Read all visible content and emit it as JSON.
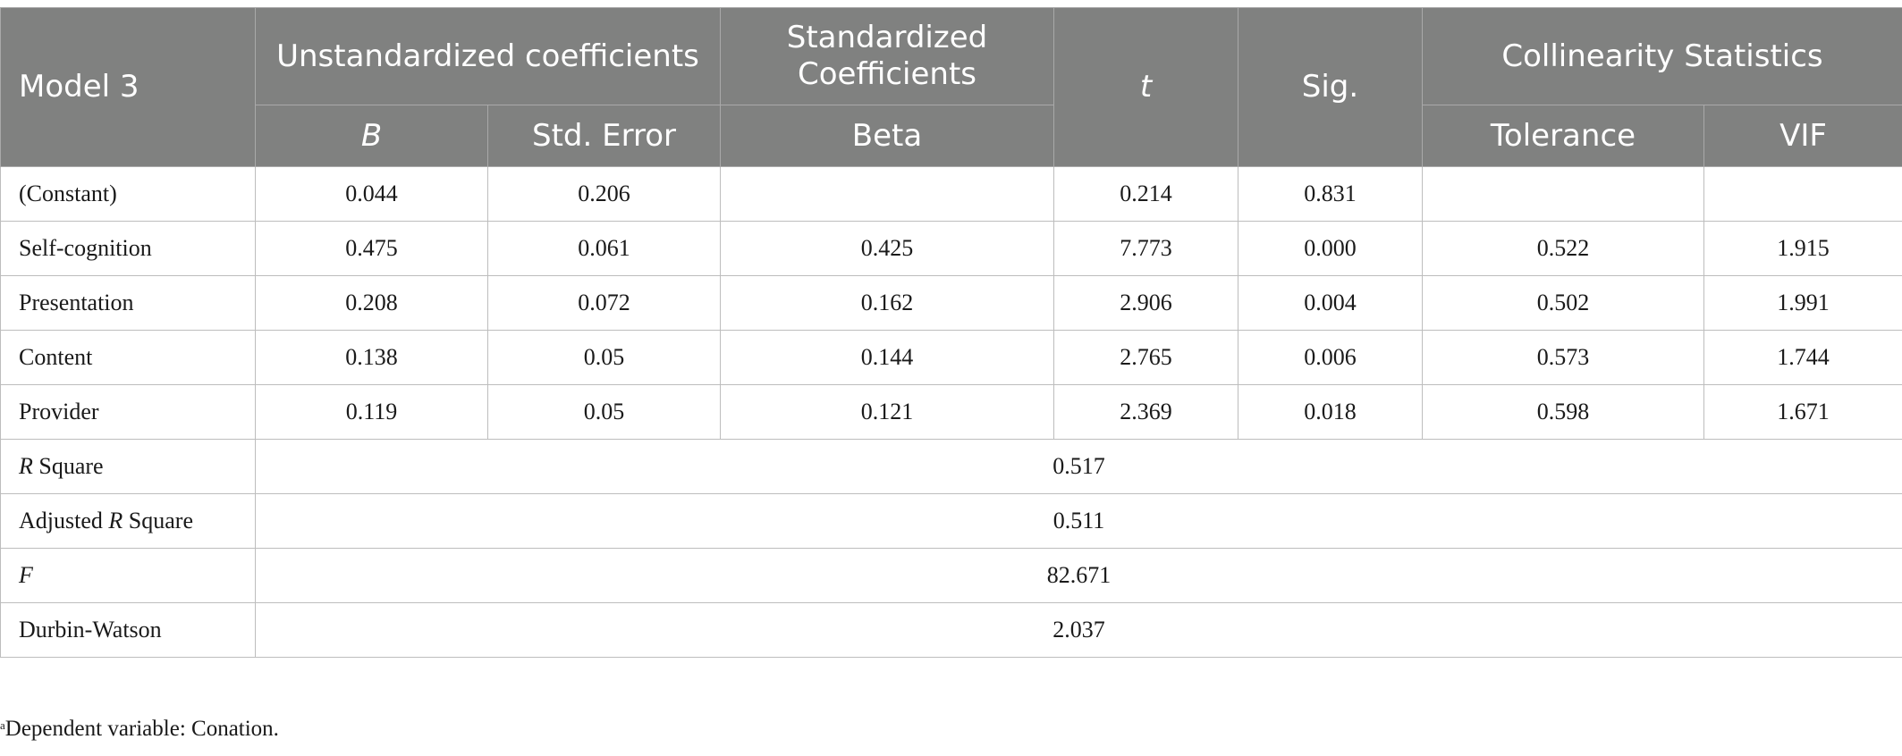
{
  "header": {
    "model": "Model 3",
    "unstd": "Unstandardized coefficients",
    "std": "Standardized Coefficients",
    "t": "t",
    "sig": "Sig.",
    "colin": "Collinearity Statistics",
    "b": "B",
    "se": "Std. Error",
    "beta": "Beta",
    "tol": "Tolerance",
    "vif": "VIF"
  },
  "rows": [
    {
      "label": "(Constant)",
      "b": "0.044",
      "se": "0.206",
      "beta": "",
      "t": "0.214",
      "sig": "0.831",
      "tol": "",
      "vif": ""
    },
    {
      "label": "Self-cognition",
      "b": "0.475",
      "se": "0.061",
      "beta": "0.425",
      "t": "7.773",
      "sig": "0.000",
      "tol": "0.522",
      "vif": "1.915"
    },
    {
      "label": "Presentation",
      "b": "0.208",
      "se": "0.072",
      "beta": "0.162",
      "t": "2.906",
      "sig": "0.004",
      "tol": "0.502",
      "vif": "1.991"
    },
    {
      "label": "Content",
      "b": "0.138",
      "se": "0.05",
      "beta": "0.144",
      "t": "2.765",
      "sig": "0.006",
      "tol": "0.573",
      "vif": "1.744"
    },
    {
      "label": "Provider",
      "b": "0.119",
      "se": "0.05",
      "beta": "0.121",
      "t": "2.369",
      "sig": "0.018",
      "tol": "0.598",
      "vif": "1.671"
    }
  ],
  "summary": {
    "r2": {
      "label_r": "R",
      "label_rest": " Square",
      "value": "0.517"
    },
    "adj": {
      "label_pre": "Adjusted ",
      "label_r": "R",
      "label_rest": " Square",
      "value": "0.511"
    },
    "f": {
      "label": "F",
      "value": "82.671"
    },
    "dw": {
      "label": "Durbin-Watson",
      "value": "2.037"
    }
  },
  "footnote": {
    "marker": "a",
    "text": "Dependent variable: Conation."
  }
}
